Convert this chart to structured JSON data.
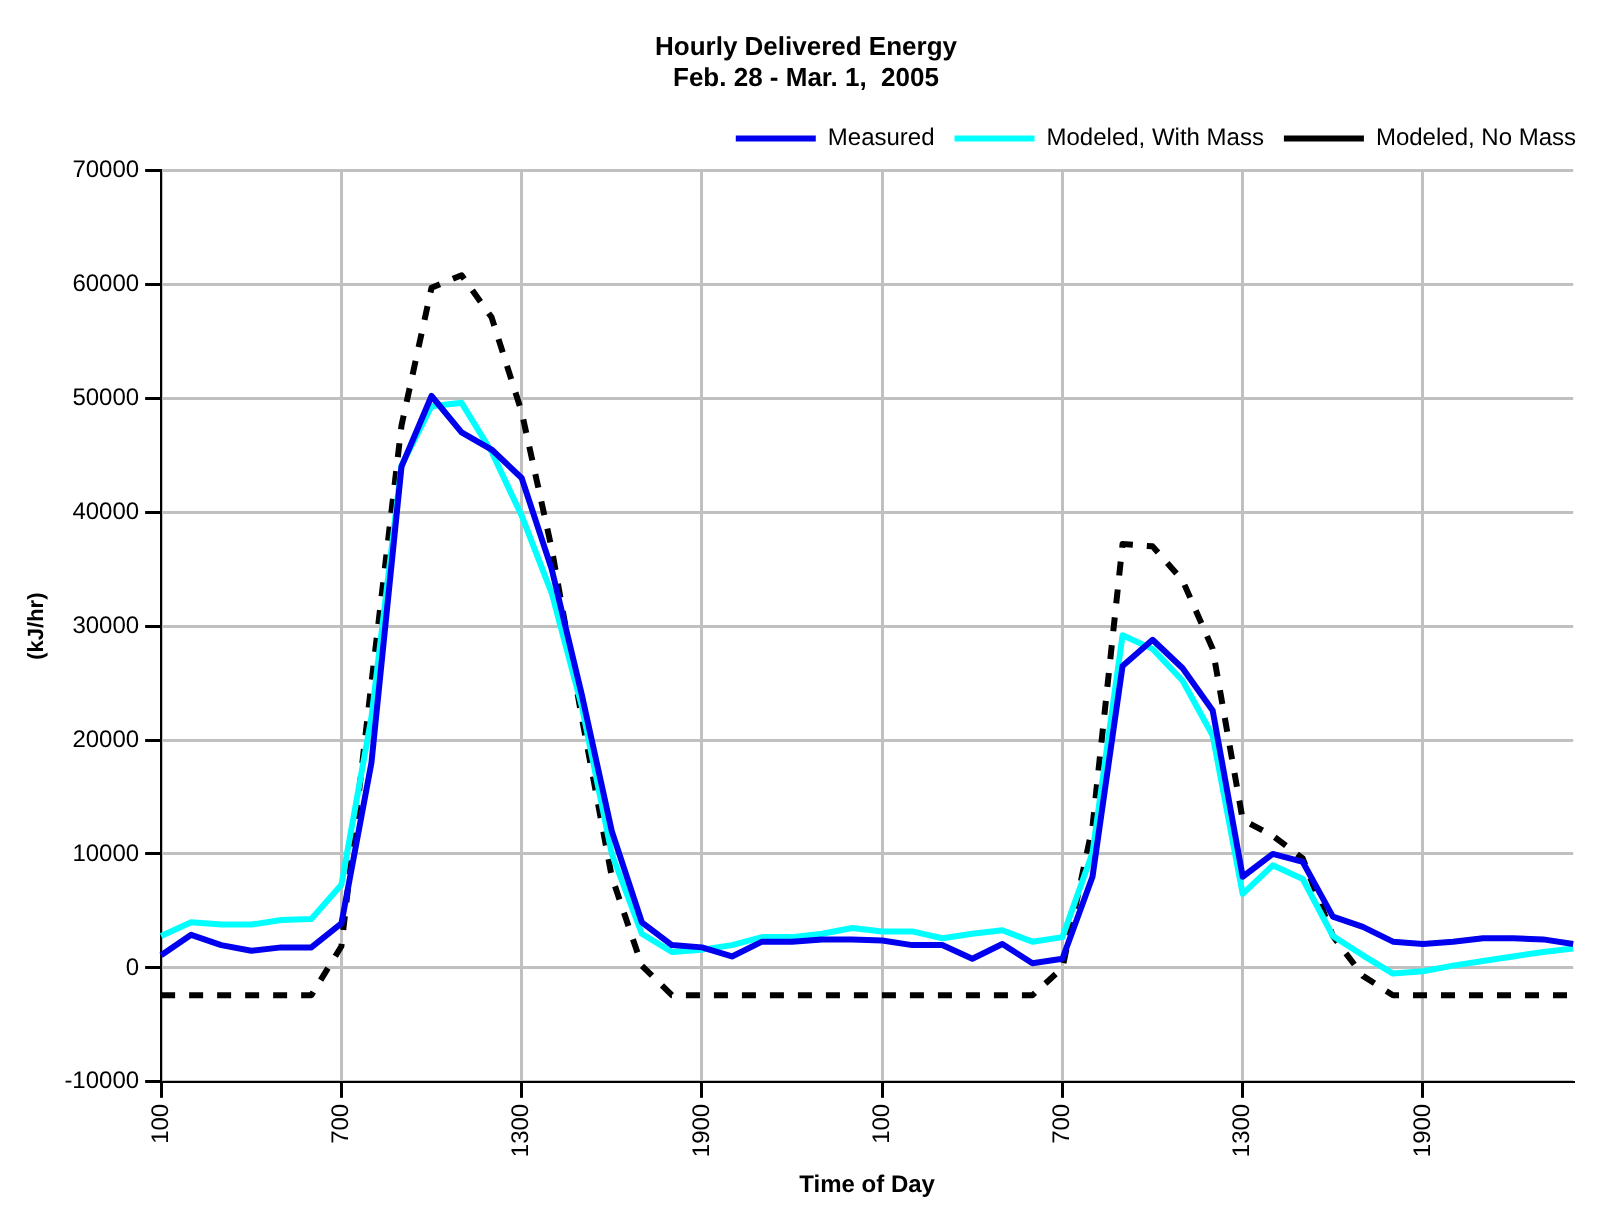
{
  "chart_data": {
    "type": "line",
    "title": "Hourly Delivered Energy",
    "subtitle": "Feb. 28 - Mar. 1,  2005",
    "xlabel": "Time of Day",
    "ylabel": "(kJ/hr)",
    "categories": [
      "100",
      null,
      null,
      null,
      null,
      null,
      "700",
      null,
      null,
      null,
      null,
      null,
      "1300",
      null,
      null,
      null,
      null,
      null,
      "1900",
      null,
      null,
      null,
      null,
      null,
      "100",
      null,
      null,
      null,
      null,
      null,
      "700",
      null,
      null,
      null,
      null,
      null,
      "1300",
      null,
      null,
      null,
      null,
      null,
      "1900",
      null,
      null,
      null,
      null,
      null
    ],
    "series": [
      {
        "name": "Measured",
        "color": "#0000ee",
        "line_style": "solid",
        "values": [
          1100,
          2900,
          2000,
          1500,
          1800,
          1800,
          3900,
          18000,
          44000,
          50200,
          47000,
          45500,
          43000,
          35000,
          24000,
          12000,
          4000,
          2000,
          1800,
          1000,
          2300,
          2300,
          2500,
          2500,
          2400,
          2000,
          2000,
          800,
          2100,
          400,
          800,
          8000,
          26500,
          28800,
          26300,
          22600,
          8000,
          10000,
          9300,
          4500,
          3600,
          2300,
          2100,
          2300,
          2600,
          2600,
          2500,
          2100
        ]
      },
      {
        "name": "Modeled, With Mass",
        "color": "#00ffff",
        "line_style": "solid",
        "values": [
          2800,
          4000,
          3800,
          3800,
          4200,
          4300,
          7300,
          22000,
          44100,
          49300,
          49600,
          45300,
          39700,
          32900,
          23000,
          10000,
          3000,
          1400,
          1600,
          2000,
          2700,
          2700,
          3000,
          3500,
          3200,
          3200,
          2600,
          3000,
          3300,
          2300,
          2700,
          10100,
          29200,
          28000,
          25200,
          20400,
          6500,
          9000,
          7800,
          2800,
          1100,
          -500,
          -300,
          200,
          600,
          1000,
          1400,
          1700
        ]
      },
      {
        "name": "Modeled, No Mass",
        "color": "#000000",
        "line_style": "dashed",
        "values": [
          -2400,
          -2400,
          -2400,
          -2400,
          -2400,
          -2400,
          1900,
          25000,
          47600,
          59700,
          60800,
          57100,
          48800,
          36800,
          22000,
          8000,
          200,
          -2400,
          -2400,
          -2400,
          -2400,
          -2400,
          -2400,
          -2400,
          -2400,
          -2400,
          -2400,
          -2400,
          -2400,
          -2400,
          0,
          12400,
          37200,
          37000,
          34000,
          28000,
          13000,
          11600,
          9600,
          2800,
          -700,
          -2400,
          -2400,
          -2400,
          -2400,
          -2400,
          -2400,
          -2400
        ]
      }
    ],
    "ylim": [
      -10000,
      70000
    ],
    "yticks": [
      -10000,
      0,
      10000,
      20000,
      30000,
      40000,
      50000,
      60000,
      70000
    ],
    "grid": true,
    "legend": "top right",
    "marker": "none"
  }
}
